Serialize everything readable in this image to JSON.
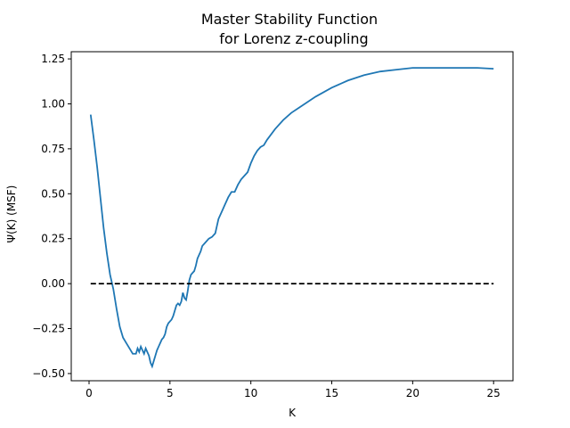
{
  "chart_data": {
    "type": "line",
    "title_line1": "Master Stability Function",
    "title_line2": "for Lorenz z-coupling",
    "xlabel": "K",
    "ylabel": "Ψ(K) (MSF)",
    "xlim": [
      -1.1,
      26.2
    ],
    "ylim": [
      -0.54,
      1.29
    ],
    "x_ticks": [
      0,
      5,
      10,
      15,
      20,
      25
    ],
    "x_tick_labels": [
      "0",
      "5",
      "10",
      "15",
      "20",
      "25"
    ],
    "y_ticks": [
      -0.5,
      -0.25,
      0.0,
      0.25,
      0.5,
      0.75,
      1.0,
      1.25
    ],
    "y_tick_labels": [
      "−0.50",
      "−0.25",
      "0.00",
      "0.25",
      "0.50",
      "0.75",
      "1.00",
      "1.25"
    ],
    "grid": false,
    "series": [
      {
        "color": "#1f77b4",
        "style": "solid",
        "x": [
          0.1,
          0.3,
          0.5,
          0.7,
          0.9,
          1.1,
          1.3,
          1.5,
          1.7,
          1.9,
          2.1,
          2.3,
          2.5,
          2.7,
          2.9,
          3.0,
          3.1,
          3.2,
          3.3,
          3.4,
          3.5,
          3.6,
          3.7,
          3.8,
          3.9,
          4.0,
          4.1,
          4.2,
          4.3,
          4.4,
          4.5,
          4.6,
          4.7,
          4.8,
          4.9,
          5.0,
          5.1,
          5.2,
          5.3,
          5.4,
          5.5,
          5.6,
          5.7,
          5.8,
          5.9,
          6.0,
          6.1,
          6.2,
          6.3,
          6.4,
          6.5,
          6.6,
          6.7,
          6.8,
          6.9,
          7.0,
          7.2,
          7.4,
          7.6,
          7.8,
          8.0,
          8.2,
          8.4,
          8.6,
          8.8,
          9.0,
          9.2,
          9.4,
          9.6,
          9.8,
          10.0,
          10.2,
          10.4,
          10.6,
          10.8,
          11.0,
          11.5,
          12.0,
          12.5,
          13.0,
          14.0,
          15.0,
          16.0,
          17.0,
          18.0,
          19.0,
          20.0,
          21.0,
          22.0,
          23.0,
          24.0,
          25.0
        ],
        "y": [
          0.94,
          0.8,
          0.65,
          0.48,
          0.31,
          0.17,
          0.05,
          -0.03,
          -0.14,
          -0.24,
          -0.3,
          -0.33,
          -0.36,
          -0.39,
          -0.39,
          -0.36,
          -0.38,
          -0.35,
          -0.37,
          -0.39,
          -0.36,
          -0.38,
          -0.4,
          -0.44,
          -0.46,
          -0.43,
          -0.4,
          -0.37,
          -0.35,
          -0.33,
          -0.31,
          -0.3,
          -0.28,
          -0.24,
          -0.22,
          -0.21,
          -0.2,
          -0.18,
          -0.15,
          -0.12,
          -0.11,
          -0.12,
          -0.1,
          -0.05,
          -0.08,
          -0.09,
          -0.04,
          0.02,
          0.05,
          0.06,
          0.07,
          0.1,
          0.14,
          0.16,
          0.18,
          0.21,
          0.23,
          0.25,
          0.26,
          0.28,
          0.36,
          0.4,
          0.44,
          0.48,
          0.51,
          0.51,
          0.55,
          0.58,
          0.6,
          0.62,
          0.67,
          0.71,
          0.74,
          0.76,
          0.77,
          0.8,
          0.86,
          0.91,
          0.95,
          0.98,
          1.04,
          1.09,
          1.13,
          1.16,
          1.18,
          1.19,
          1.2,
          1.2,
          1.2,
          1.2,
          1.2,
          1.195
        ]
      },
      {
        "color": "#000000",
        "style": "dashed",
        "x": [
          0.1,
          25.0
        ],
        "y": [
          0.0,
          0.0
        ]
      }
    ]
  }
}
